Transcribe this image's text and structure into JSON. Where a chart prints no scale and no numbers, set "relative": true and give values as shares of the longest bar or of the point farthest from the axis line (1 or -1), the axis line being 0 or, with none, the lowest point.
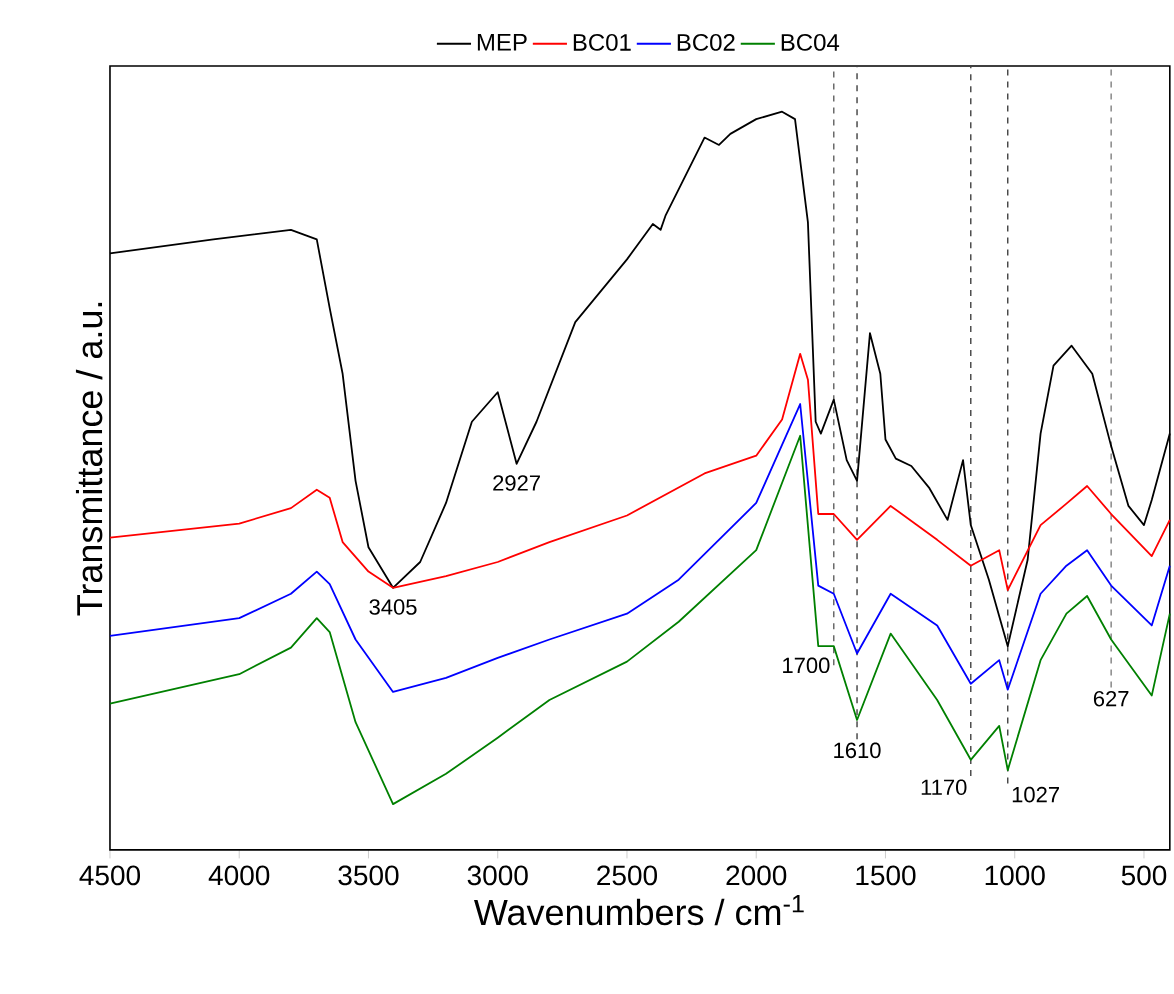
{
  "chart_data": {
    "type": "line",
    "relative": true,
    "xlabel": "Wavenumbers / cm$^{-1}$",
    "ylabel": "Transmittance / a.u.",
    "xlim": [
      4500,
      400
    ],
    "xticks": [
      4500,
      4000,
      3500,
      3000,
      2500,
      2000,
      1500,
      1000,
      500
    ],
    "legend": "top",
    "line_style": "solid",
    "series": [
      {
        "name": "MEP",
        "color": "#000000",
        "x": [
          4500,
          4100,
          3800,
          3700,
          3650,
          3600,
          3550,
          3500,
          3405,
          3300,
          3200,
          3100,
          3000,
          2927,
          2850,
          2700,
          2500,
          2400,
          2370,
          2350,
          2200,
          2144,
          2100,
          2000,
          1900,
          1850,
          1800,
          1770,
          1750,
          1700,
          1650,
          1610,
          1560,
          1520,
          1500,
          1460,
          1400,
          1330,
          1260,
          1200,
          1170,
          1100,
          1027,
          950,
          900,
          850,
          780,
          700,
          627,
          560,
          500,
          470,
          400
        ],
        "values": [
          0.808,
          0.827,
          0.84,
          0.827,
          0.734,
          0.645,
          0.5,
          0.41,
          0.355,
          0.39,
          0.47,
          0.58,
          0.62,
          0.523,
          0.58,
          0.715,
          0.8,
          0.848,
          0.84,
          0.86,
          0.965,
          0.955,
          0.97,
          0.99,
          1.0,
          0.99,
          0.85,
          0.58,
          0.564,
          0.61,
          0.528,
          0.5,
          0.7,
          0.645,
          0.556,
          0.53,
          0.52,
          0.49,
          0.447,
          0.528,
          0.44,
          0.366,
          0.276,
          0.393,
          0.564,
          0.656,
          0.683,
          0.645,
          0.547,
          0.466,
          0.44,
          0.474,
          0.564
        ]
      },
      {
        "name": "BC01",
        "color": "#ff0000",
        "x": [
          4500,
          4000,
          3800,
          3700,
          3650,
          3600,
          3500,
          3405,
          3200,
          3000,
          2800,
          2500,
          2200,
          2000,
          1900,
          1830,
          1800,
          1760,
          1700,
          1610,
          1480,
          1300,
          1170,
          1060,
          1027,
          900,
          800,
          720,
          627,
          470,
          400
        ],
        "values": [
          0.423,
          0.442,
          0.463,
          0.488,
          0.477,
          0.417,
          0.377,
          0.355,
          0.371,
          0.39,
          0.417,
          0.453,
          0.51,
          0.534,
          0.583,
          0.672,
          0.637,
          0.455,
          0.455,
          0.42,
          0.466,
          0.42,
          0.385,
          0.406,
          0.352,
          0.44,
          0.469,
          0.493,
          0.455,
          0.398,
          0.447
        ]
      },
      {
        "name": "BC02",
        "color": "#0000ff",
        "x": [
          4500,
          4000,
          3800,
          3700,
          3650,
          3550,
          3405,
          3200,
          3000,
          2800,
          2500,
          2300,
          2000,
          1830,
          1760,
          1700,
          1610,
          1480,
          1300,
          1170,
          1060,
          1027,
          900,
          800,
          720,
          627,
          470,
          400
        ],
        "values": [
          0.29,
          0.314,
          0.347,
          0.377,
          0.36,
          0.285,
          0.214,
          0.233,
          0.26,
          0.285,
          0.32,
          0.366,
          0.47,
          0.604,
          0.358,
          0.347,
          0.266,
          0.347,
          0.304,
          0.225,
          0.257,
          0.217,
          0.347,
          0.385,
          0.406,
          0.358,
          0.304,
          0.385
        ]
      },
      {
        "name": "BC04",
        "color": "#008000",
        "x": [
          4500,
          4000,
          3800,
          3700,
          3650,
          3550,
          3405,
          3200,
          3000,
          2800,
          2500,
          2300,
          2000,
          1830,
          1760,
          1700,
          1610,
          1480,
          1300,
          1170,
          1060,
          1027,
          900,
          800,
          720,
          627,
          470,
          400
        ],
        "values": [
          0.198,
          0.238,
          0.274,
          0.314,
          0.295,
          0.173,
          0.062,
          0.103,
          0.152,
          0.203,
          0.255,
          0.309,
          0.406,
          0.561,
          0.276,
          0.276,
          0.176,
          0.293,
          0.203,
          0.122,
          0.168,
          0.108,
          0.257,
          0.32,
          0.344,
          0.285,
          0.209,
          0.32
        ]
      }
    ],
    "ref_lines": [
      {
        "axis": "x",
        "value": 1700,
        "color": "#606060",
        "line_style": "dashed"
      },
      {
        "axis": "x",
        "value": 1610,
        "color": "#404040",
        "line_style": "dashed"
      },
      {
        "axis": "x",
        "value": 1170,
        "color": "#404040",
        "line_style": "dashed"
      },
      {
        "axis": "x",
        "value": 1027,
        "color": "#404040",
        "line_style": "dashed"
      },
      {
        "axis": "x",
        "value": 627,
        "color": "#808080",
        "line_style": "dashed"
      }
    ],
    "annotations": [
      {
        "text": "3405",
        "x": 3405,
        "y": 0.355
      },
      {
        "text": "2927",
        "x": 2927,
        "y": 0.523
      },
      {
        "text": "1700",
        "x": 1700,
        "y": 0.25
      },
      {
        "text": "1610",
        "x": 1610,
        "y": 0.15
      },
      {
        "text": "1170",
        "x": 1170,
        "y": 0.1
      },
      {
        "text": "1027",
        "x": 1027,
        "y": 0.09
      },
      {
        "text": "627",
        "x": 627,
        "y": 0.22
      }
    ]
  }
}
